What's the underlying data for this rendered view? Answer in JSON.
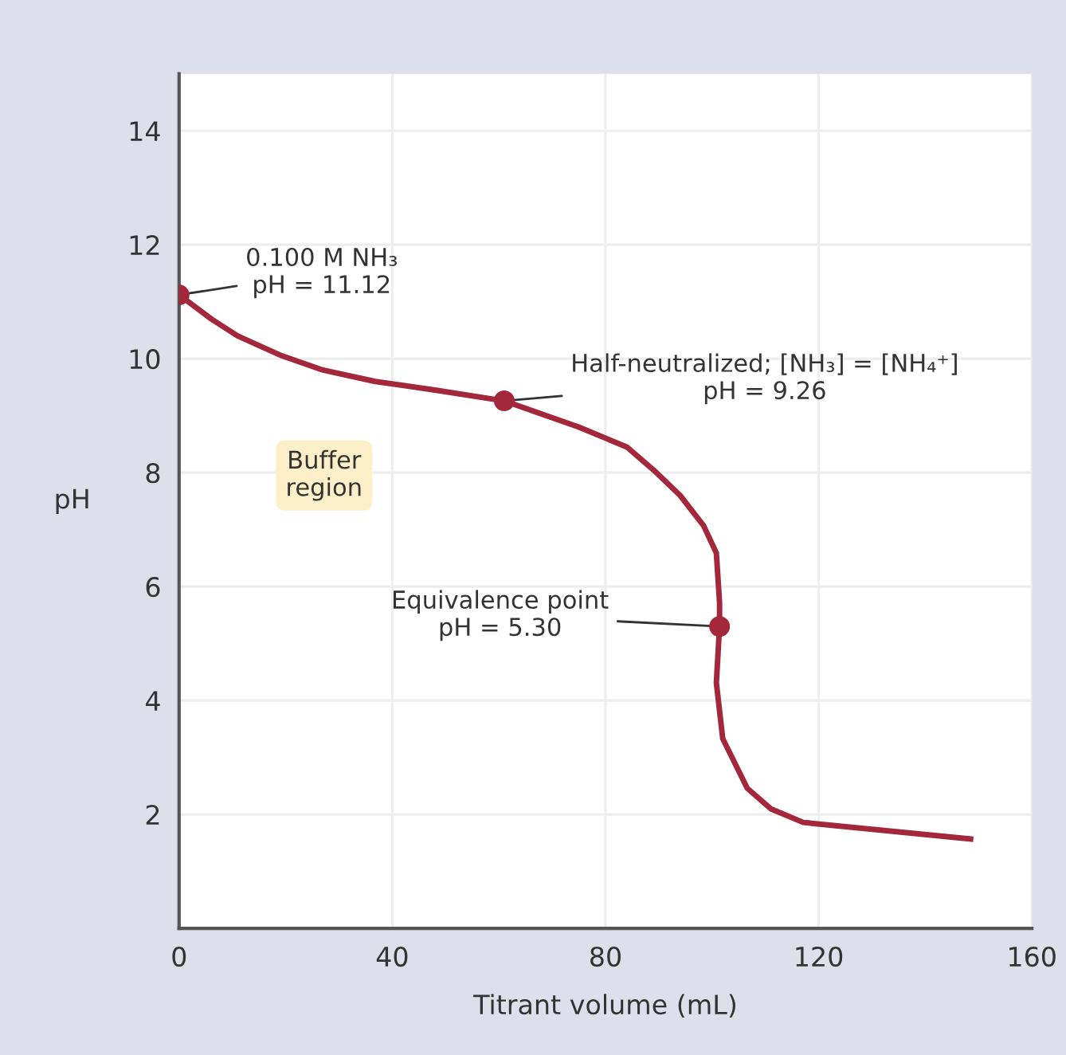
{
  "chart_data": {
    "type": "line",
    "xlabel": "Titrant volume (mL)",
    "ylabel": "pH",
    "xlim": [
      0,
      160
    ],
    "ylim": [
      0,
      15
    ],
    "xticks": [
      0,
      40,
      80,
      120,
      160
    ],
    "yticks": [
      2,
      4,
      6,
      8,
      10,
      12,
      14
    ],
    "grid": true,
    "legend": false,
    "series": [
      {
        "color": "#a3283c",
        "line_style": "solid",
        "x": [
          0,
          6,
          11,
          19.3,
          27,
          36.8,
          48,
          61,
          75,
          84,
          89.1,
          94,
          98.4,
          100.8,
          101.4,
          101.4,
          100.8,
          102,
          106.6,
          111,
          117.1,
          148.5
        ],
        "values": [
          11.12,
          10.7,
          10.4,
          10.05,
          9.8,
          9.6,
          9.45,
          9.26,
          8.8,
          8.45,
          8.04,
          7.6,
          7.07,
          6.59,
          5.72,
          5.3,
          4.31,
          3.33,
          2.46,
          2.1,
          1.86,
          1.57
        ]
      },
      {
        "type": "scatter",
        "color": "#a3283c",
        "marker": "circle",
        "x": [
          0,
          61,
          101.4
        ],
        "values": [
          11.12,
          9.26,
          5.3
        ]
      }
    ],
    "annotations": [
      {
        "text": "0.100 M NH₃\npH = 11.12",
        "x": 0,
        "y": 11.12
      },
      {
        "text": "Half-neutralized; [NH₃] = [NH₄⁺]\npH = 9.26",
        "x": 61,
        "y": 9.26
      },
      {
        "text": "Equivalence point\npH = 5.30",
        "x": 101.4,
        "y": 5.3
      },
      "Buffer\nregion"
    ]
  }
}
